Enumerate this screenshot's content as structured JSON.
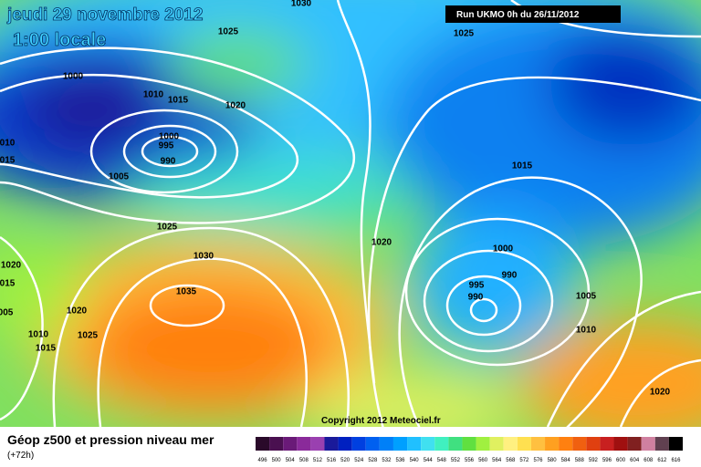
{
  "header": {
    "date": "jeudi 29 novembre 2012",
    "time": "1:00 locale",
    "run": "Run UKMO 0h du 26/11/2012"
  },
  "isobar_labels": [
    "1030",
    "1025",
    "1025",
    "1000",
    "1010",
    "1015",
    "1020",
    "1000",
    "995",
    "990",
    "010",
    "015",
    "1005",
    "1015",
    "1025",
    "1020",
    "1000",
    "1030",
    "1020",
    "015",
    "990",
    "995",
    "990",
    "1035",
    "1005",
    "005",
    "1020",
    "1010",
    "1025",
    "1015",
    "1010",
    "1020"
  ],
  "copyright": "Copyright 2012 Meteociel.fr",
  "footer": {
    "title": "Géop z500 et pression niveau mer",
    "lead": "(+72h)"
  },
  "scale": [
    {
      "label": "496",
      "color": "#2a0a2a"
    },
    {
      "label": "500",
      "color": "#4a1050"
    },
    {
      "label": "504",
      "color": "#6a1a78"
    },
    {
      "label": "508",
      "color": "#8a2a9a"
    },
    {
      "label": "512",
      "color": "#9a40b0"
    },
    {
      "label": "516",
      "color": "#1a1a9a"
    },
    {
      "label": "520",
      "color": "#0020c0"
    },
    {
      "label": "524",
      "color": "#0040e0"
    },
    {
      "label": "528",
      "color": "#0060f0"
    },
    {
      "label": "532",
      "color": "#0080f8"
    },
    {
      "label": "536",
      "color": "#00a0ff"
    },
    {
      "label": "540",
      "color": "#20c0ff"
    },
    {
      "label": "544",
      "color": "#40e0f0"
    },
    {
      "label": "548",
      "color": "#40f0c0"
    },
    {
      "label": "552",
      "color": "#40e080"
    },
    {
      "label": "556",
      "color": "#60e040"
    },
    {
      "label": "560",
      "color": "#a0f040"
    },
    {
      "label": "564",
      "color": "#e0f060"
    },
    {
      "label": "568",
      "color": "#fff080"
    },
    {
      "label": "572",
      "color": "#ffe050"
    },
    {
      "label": "576",
      "color": "#ffc040"
    },
    {
      "label": "580",
      "color": "#ffa020"
    },
    {
      "label": "584",
      "color": "#ff8010"
    },
    {
      "label": "588",
      "color": "#f06010"
    },
    {
      "label": "592",
      "color": "#e04010"
    },
    {
      "label": "596",
      "color": "#c82020"
    },
    {
      "label": "600",
      "color": "#a01010"
    },
    {
      "label": "604",
      "color": "#802020"
    },
    {
      "label": "608",
      "color": "#d080a0"
    },
    {
      "label": "612",
      "color": "#604050"
    },
    {
      "label": "616",
      "color": "#000000"
    }
  ]
}
